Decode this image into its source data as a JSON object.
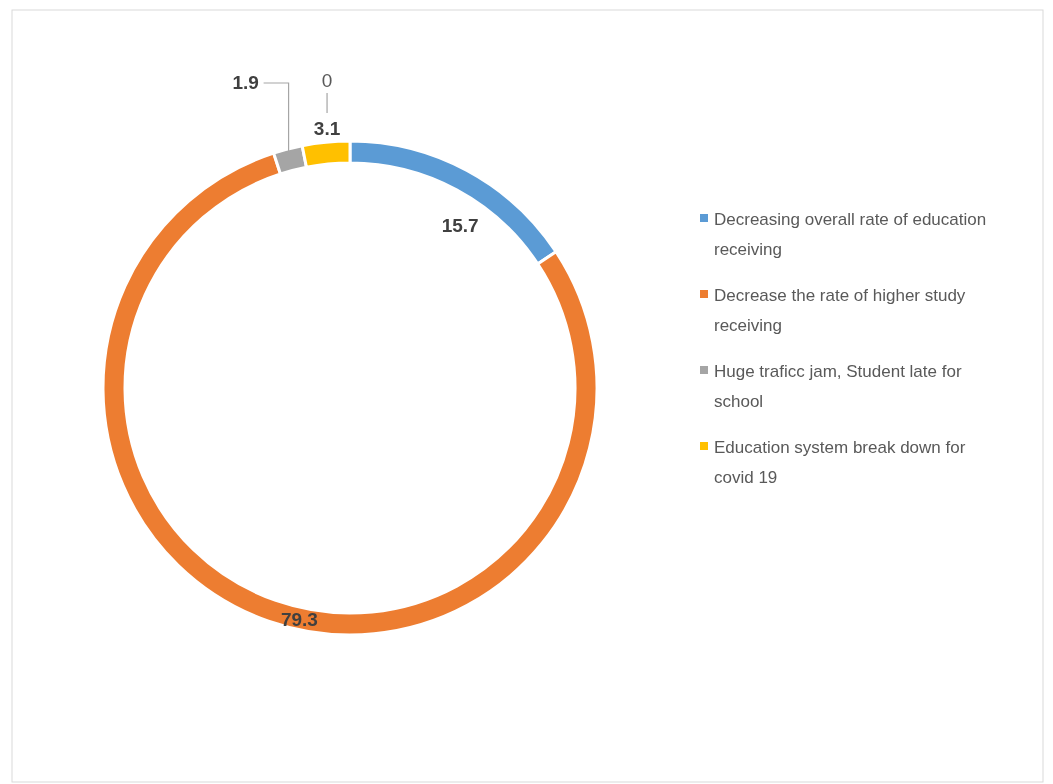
{
  "chart_data": {
    "type": "donut",
    "categories": [
      "Decreasing overall rate of education receiving",
      "Decrease the rate of higher study receiving",
      "Huge traficc jam, Student late for school",
      "Education system break down for covid 19"
    ],
    "values": [
      15.7,
      79.3,
      1.9,
      3.1
    ],
    "colors": [
      "#5b9bd5",
      "#ed7d31",
      "#a5a5a5",
      "#ffc000"
    ],
    "data_labels": true,
    "legend": "right",
    "annotations": [
      "0"
    ]
  }
}
